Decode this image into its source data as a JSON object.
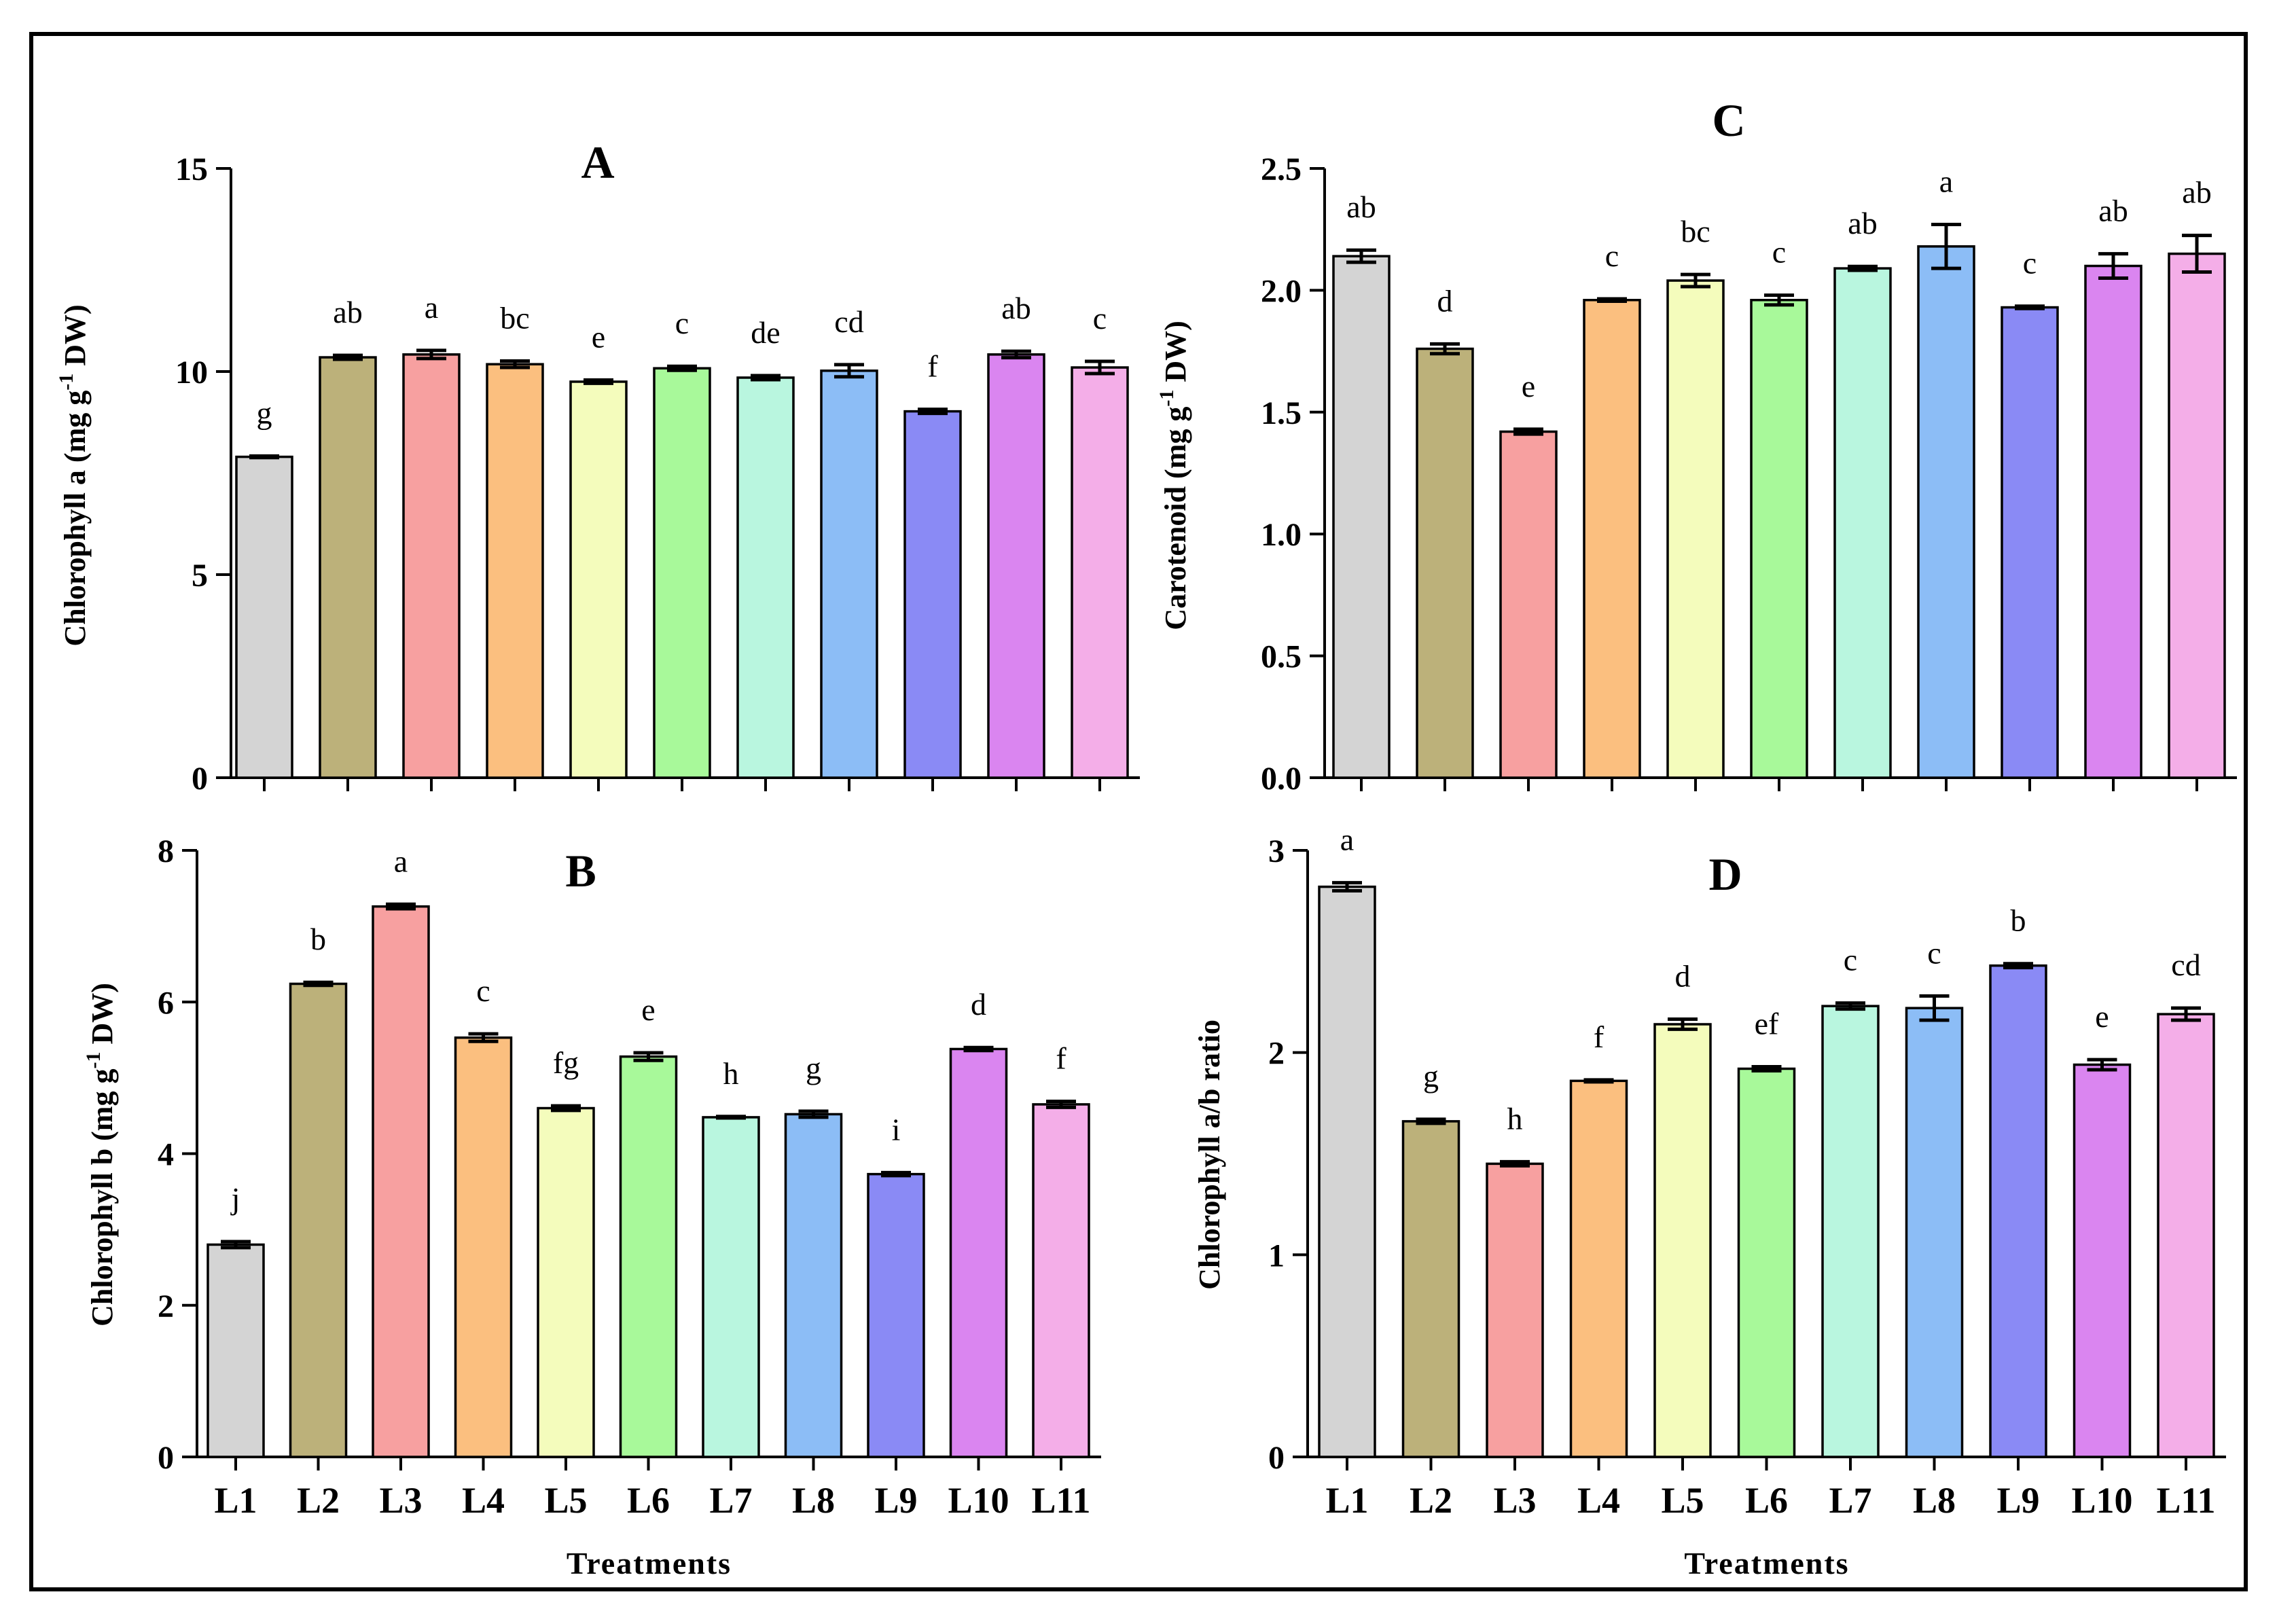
{
  "figure": {
    "treatments_label": "Treatments"
  },
  "chart_data": [
    {
      "id": "A",
      "type": "bar",
      "title": "A",
      "ylabel_main": "Chlorophyll a (mg g",
      "ylabel_sup": "-1",
      "ylabel_tail": " DW)",
      "xlabel": "",
      "ylim": [
        0,
        15
      ],
      "yticks": [
        0,
        5,
        10,
        15
      ],
      "ytick_labels": [
        "0",
        "5",
        "10",
        "15"
      ],
      "categories": [
        "L1",
        "L2",
        "L3",
        "L4",
        "L5",
        "L6",
        "L7",
        "L8",
        "L9",
        "L10",
        "L11"
      ],
      "show_category_labels": false,
      "values": [
        7.9,
        10.35,
        10.42,
        10.18,
        9.75,
        10.08,
        9.85,
        10.02,
        9.02,
        10.42,
        10.1
      ],
      "errors": [
        0.02,
        0.05,
        0.1,
        0.08,
        0.04,
        0.05,
        0.05,
        0.15,
        0.05,
        0.08,
        0.15
      ],
      "letters": [
        "g",
        "ab",
        "a",
        "bc",
        "e",
        "c",
        "de",
        "cd",
        "f",
        "ab",
        "c"
      ],
      "colors": [
        "#d4d4d4",
        "#bcb17a",
        "#f7a0a0",
        "#fbbf7f",
        "#f4fcbc",
        "#a8f99a",
        "#b9f6df",
        "#8cbdf6",
        "#8a8af5",
        "#da85f0",
        "#f4aee8"
      ]
    },
    {
      "id": "C",
      "type": "bar",
      "title": "C",
      "ylabel_main": "Carotenoid (mg g",
      "ylabel_sup": "-1",
      "ylabel_tail": " DW)",
      "xlabel": "",
      "ylim": [
        0,
        2.5
      ],
      "yticks": [
        0,
        0.5,
        1.0,
        1.5,
        2.0,
        2.5
      ],
      "ytick_labels": [
        "0.0",
        "0.5",
        "1.0",
        "1.5",
        "2.0",
        "2.5"
      ],
      "categories": [
        "L1",
        "L2",
        "L3",
        "L4",
        "L5",
        "L6",
        "L7",
        "L8",
        "L9",
        "L10",
        "L11"
      ],
      "show_category_labels": false,
      "values": [
        2.14,
        1.76,
        1.42,
        1.96,
        2.04,
        1.96,
        2.09,
        2.18,
        1.93,
        2.1,
        2.15
      ],
      "errors": [
        0.025,
        0.02,
        0.01,
        0.005,
        0.025,
        0.02,
        0.008,
        0.09,
        0.005,
        0.05,
        0.075
      ],
      "letters": [
        "ab",
        "d",
        "e",
        "c",
        "bc",
        "c",
        "ab",
        "a",
        "c",
        "ab",
        "ab"
      ],
      "colors": [
        "#d4d4d4",
        "#bcb17a",
        "#f7a0a0",
        "#fbbf7f",
        "#f4fcbc",
        "#a8f99a",
        "#b9f6df",
        "#8cbdf6",
        "#8a8af5",
        "#da85f0",
        "#f4aee8"
      ]
    },
    {
      "id": "B",
      "type": "bar",
      "title": "B",
      "ylabel_main": "Chlorophyll b (mg g",
      "ylabel_sup": "-1",
      "ylabel_tail": " DW)",
      "xlabel": "Treatments",
      "ylim": [
        0,
        8
      ],
      "yticks": [
        0,
        2,
        4,
        6,
        8
      ],
      "ytick_labels": [
        "0",
        "2",
        "4",
        "6",
        "8"
      ],
      "categories": [
        "L1",
        "L2",
        "L3",
        "L4",
        "L5",
        "L6",
        "L7",
        "L8",
        "L9",
        "L10",
        "L11"
      ],
      "show_category_labels": true,
      "values": [
        2.8,
        6.24,
        7.26,
        5.53,
        4.6,
        5.28,
        4.48,
        4.52,
        3.73,
        5.38,
        4.65
      ],
      "errors": [
        0.04,
        0.02,
        0.03,
        0.05,
        0.03,
        0.05,
        0.01,
        0.04,
        0.02,
        0.02,
        0.04
      ],
      "letters": [
        "j",
        "b",
        "a",
        "c",
        "fg",
        "e",
        "h",
        "g",
        "i",
        "d",
        "f"
      ],
      "colors": [
        "#d4d4d4",
        "#bcb17a",
        "#f7a0a0",
        "#fbbf7f",
        "#f4fcbc",
        "#a8f99a",
        "#b9f6df",
        "#8cbdf6",
        "#8a8af5",
        "#da85f0",
        "#f4aee8"
      ]
    },
    {
      "id": "D",
      "type": "bar",
      "title": "D",
      "ylabel_main": "Chlorophyll a/b ratio",
      "ylabel_sup": "",
      "ylabel_tail": "",
      "xlabel": "Treatments",
      "ylim": [
        0,
        3
      ],
      "yticks": [
        0,
        1,
        2,
        3
      ],
      "ytick_labels": [
        "0",
        "1",
        "2",
        "3"
      ],
      "categories": [
        "L1",
        "L2",
        "L3",
        "L4",
        "L5",
        "L6",
        "L7",
        "L8",
        "L9",
        "L10",
        "L11"
      ],
      "show_category_labels": true,
      "values": [
        2.82,
        1.66,
        1.45,
        1.86,
        2.14,
        1.92,
        2.23,
        2.22,
        2.43,
        1.94,
        2.19
      ],
      "errors": [
        0.02,
        0.01,
        0.01,
        0.005,
        0.025,
        0.01,
        0.015,
        0.06,
        0.01,
        0.025,
        0.03
      ],
      "letters": [
        "a",
        "g",
        "h",
        "f",
        "d",
        "ef",
        "c",
        "c",
        "b",
        "e",
        "cd"
      ],
      "colors": [
        "#d4d4d4",
        "#bcb17a",
        "#f7a0a0",
        "#fbbf7f",
        "#f4fcbc",
        "#a8f99a",
        "#b9f6df",
        "#8cbdf6",
        "#8a8af5",
        "#da85f0",
        "#f4aee8"
      ]
    }
  ]
}
